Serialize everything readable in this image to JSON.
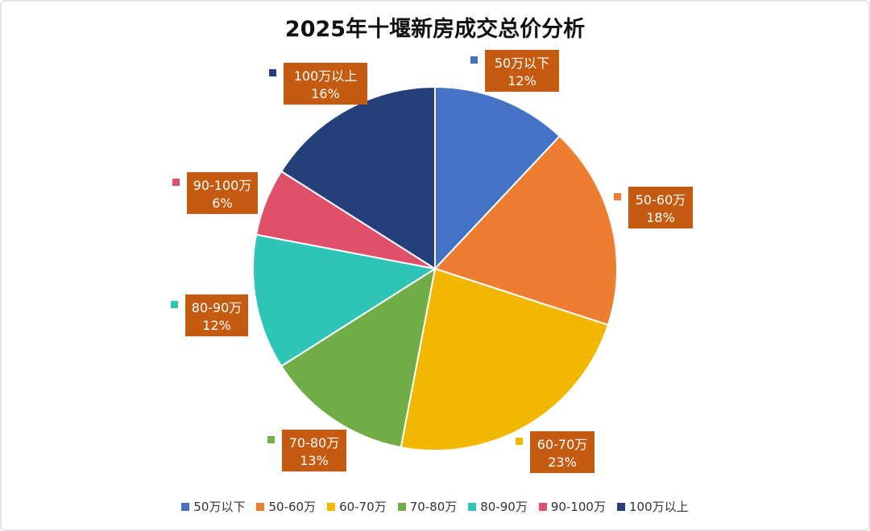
{
  "chart_data": {
    "type": "pie",
    "title": "2025年十堰新房成交总价分析",
    "legend_position": "bottom",
    "categories": [
      "50万以下",
      "50-60万",
      "60-70万",
      "70-80万",
      "80-90万",
      "90-100万",
      "100万以上"
    ],
    "values": [
      12,
      18,
      23,
      13,
      12,
      6,
      16
    ],
    "labels": [
      "12%",
      "18%",
      "23%",
      "13%",
      "12%",
      "6%",
      "16%"
    ],
    "colors": [
      "#4472C4",
      "#ED7D31",
      "#F2B800",
      "#70AD47",
      "#2EC4B6",
      "#E0506A",
      "#243F7A"
    ],
    "label_box_color": "#C55A11"
  }
}
